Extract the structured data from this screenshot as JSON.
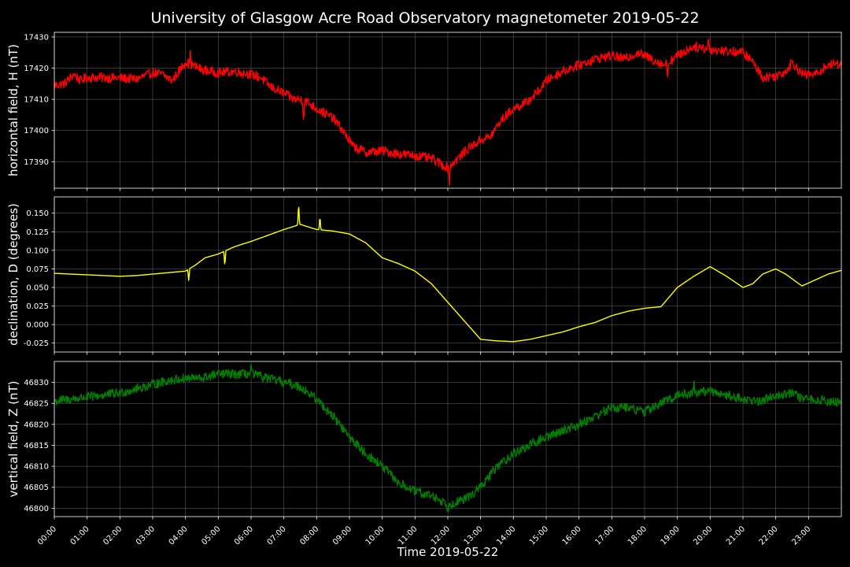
{
  "chart_data": {
    "type": "line",
    "title": "University of Glasgow Acre Road Observatory magnetometer 2019-05-22",
    "xlabel": "Time 2019-05-22",
    "x_ticks": [
      "00:00",
      "01:00",
      "02:00",
      "03:00",
      "04:00",
      "05:00",
      "06:00",
      "07:00",
      "08:00",
      "09:00",
      "10:00",
      "11:00",
      "12:00",
      "13:00",
      "14:00",
      "15:00",
      "16:00",
      "17:00",
      "18:00",
      "19:00",
      "20:00",
      "21:00",
      "22:00",
      "23:00"
    ],
    "xlim": [
      0,
      24
    ],
    "grid": true,
    "panels": [
      {
        "name": "H",
        "ylabel": "horizontal field, H (nT)",
        "color": "#ff0000",
        "ylim": [
          17381.5,
          17431.5
        ],
        "yticks": [
          17390,
          17400,
          17410,
          17420,
          17430
        ],
        "noise": 0.6,
        "points": [
          [
            0,
            17414.5
          ],
          [
            0.3,
            17415
          ],
          [
            0.6,
            17418
          ],
          [
            0.8,
            17416
          ],
          [
            1.0,
            17417
          ],
          [
            1.5,
            17417
          ],
          [
            2.0,
            17416.8
          ],
          [
            2.5,
            17416.5
          ],
          [
            3.0,
            17418.5
          ],
          [
            3.3,
            17418
          ],
          [
            3.6,
            17416
          ],
          [
            3.8,
            17419
          ],
          [
            4.0,
            17422
          ],
          [
            4.2,
            17421
          ],
          [
            4.5,
            17419.5
          ],
          [
            5.0,
            17418.5
          ],
          [
            5.5,
            17419
          ],
          [
            6.0,
            17418
          ],
          [
            6.3,
            17417
          ],
          [
            6.6,
            17414
          ],
          [
            7.0,
            17412
          ],
          [
            7.3,
            17410
          ],
          [
            7.6,
            17410
          ],
          [
            8.0,
            17407
          ],
          [
            8.5,
            17404
          ],
          [
            8.8,
            17400
          ],
          [
            9.1,
            17395
          ],
          [
            9.5,
            17393
          ],
          [
            10.0,
            17393.5
          ],
          [
            10.5,
            17392.5
          ],
          [
            11.0,
            17392
          ],
          [
            11.5,
            17391
          ],
          [
            12.0,
            17388
          ],
          [
            12.3,
            17391
          ],
          [
            12.6,
            17394
          ],
          [
            13.0,
            17397
          ],
          [
            13.3,
            17398
          ],
          [
            13.6,
            17403
          ],
          [
            14.0,
            17407
          ],
          [
            14.4,
            17409
          ],
          [
            14.8,
            17413
          ],
          [
            15.0,
            17416
          ],
          [
            15.5,
            17419
          ],
          [
            16.0,
            17421
          ],
          [
            16.5,
            17423
          ],
          [
            17.0,
            17424
          ],
          [
            17.4,
            17423
          ],
          [
            17.8,
            17425
          ],
          [
            18.2,
            17423
          ],
          [
            18.6,
            17421
          ],
          [
            19.0,
            17424
          ],
          [
            19.5,
            17427
          ],
          [
            20.0,
            17426
          ],
          [
            20.5,
            17425.5
          ],
          [
            21.0,
            17425
          ],
          [
            21.3,
            17422
          ],
          [
            21.6,
            17417
          ],
          [
            22.0,
            17417.5
          ],
          [
            22.3,
            17419
          ],
          [
            22.5,
            17422
          ],
          [
            22.8,
            17418
          ],
          [
            23.2,
            17418
          ],
          [
            23.6,
            17421
          ],
          [
            24.0,
            17421.5
          ]
        ],
        "spikes": [
          [
            4.15,
            17424.5
          ],
          [
            7.6,
            17403
          ],
          [
            12.05,
            17383.5
          ],
          [
            19.95,
            17429.5
          ],
          [
            18.7,
            17417
          ]
        ]
      },
      {
        "name": "D",
        "ylabel": "declination, D (degrees)",
        "color": "#ffff00",
        "ylim": [
          -0.037,
          0.172
        ],
        "yticks": [
          -0.025,
          0.0,
          0.025,
          0.05,
          0.075,
          0.1,
          0.125,
          0.15
        ],
        "noise": 0.002,
        "points": [
          [
            0,
            0.069
          ],
          [
            0.5,
            0.068
          ],
          [
            1.0,
            0.067
          ],
          [
            1.5,
            0.066
          ],
          [
            2.0,
            0.065
          ],
          [
            2.5,
            0.066
          ],
          [
            3.0,
            0.068
          ],
          [
            3.5,
            0.07
          ],
          [
            4.0,
            0.072
          ],
          [
            4.3,
            0.08
          ],
          [
            4.6,
            0.09
          ],
          [
            5.0,
            0.095
          ],
          [
            5.5,
            0.105
          ],
          [
            6.0,
            0.112
          ],
          [
            6.5,
            0.12
          ],
          [
            7.0,
            0.128
          ],
          [
            7.5,
            0.135
          ],
          [
            8.0,
            0.128
          ],
          [
            8.5,
            0.126
          ],
          [
            9.0,
            0.122
          ],
          [
            9.5,
            0.11
          ],
          [
            10.0,
            0.09
          ],
          [
            10.5,
            0.082
          ],
          [
            11.0,
            0.072
          ],
          [
            11.5,
            0.055
          ],
          [
            12.0,
            0.03
          ],
          [
            12.5,
            0.005
          ],
          [
            13.0,
            -0.02
          ],
          [
            13.5,
            -0.022
          ],
          [
            14.0,
            -0.023
          ],
          [
            14.5,
            -0.02
          ],
          [
            15.0,
            -0.015
          ],
          [
            15.5,
            -0.01
          ],
          [
            16.0,
            -0.003
          ],
          [
            16.5,
            0.003
          ],
          [
            17.0,
            0.012
          ],
          [
            17.5,
            0.018
          ],
          [
            18.0,
            0.022
          ],
          [
            18.5,
            0.024
          ],
          [
            19.0,
            0.05
          ],
          [
            19.5,
            0.065
          ],
          [
            20.0,
            0.078
          ],
          [
            20.5,
            0.065
          ],
          [
            21.0,
            0.05
          ],
          [
            21.3,
            0.055
          ],
          [
            21.6,
            0.068
          ],
          [
            22.0,
            0.075
          ],
          [
            22.3,
            0.068
          ],
          [
            22.8,
            0.052
          ],
          [
            23.2,
            0.06
          ],
          [
            23.6,
            0.068
          ],
          [
            24.0,
            0.073
          ]
        ],
        "spikes": [
          [
            7.45,
            0.165
          ],
          [
            8.1,
            0.147
          ],
          [
            4.1,
            0.058
          ],
          [
            5.2,
            0.078
          ]
        ]
      },
      {
        "name": "Z",
        "ylabel": "vertical field, Z (nT)",
        "color": "#008000",
        "ylim": [
          46798,
          46835
        ],
        "yticks": [
          46800,
          46805,
          46810,
          46815,
          46820,
          46825,
          46830
        ],
        "noise": 0.6,
        "points": [
          [
            0,
            46825.5
          ],
          [
            0.5,
            46826
          ],
          [
            1.0,
            46826.5
          ],
          [
            1.5,
            46827
          ],
          [
            2.0,
            46827.5
          ],
          [
            2.5,
            46828.5
          ],
          [
            3.0,
            46829.5
          ],
          [
            3.5,
            46830.5
          ],
          [
            4.0,
            46831
          ],
          [
            4.5,
            46831
          ],
          [
            5.0,
            46832
          ],
          [
            5.5,
            46832
          ],
          [
            6.0,
            46832
          ],
          [
            6.5,
            46831
          ],
          [
            7.0,
            46830
          ],
          [
            7.5,
            46829
          ],
          [
            8.0,
            46826
          ],
          [
            8.5,
            46822
          ],
          [
            9.0,
            46817
          ],
          [
            9.5,
            46813
          ],
          [
            10.0,
            46810
          ],
          [
            10.5,
            46806
          ],
          [
            11.0,
            46804
          ],
          [
            11.5,
            46803
          ],
          [
            12.0,
            46801
          ],
          [
            12.5,
            46802
          ],
          [
            13.0,
            46805
          ],
          [
            13.5,
            46810
          ],
          [
            14.0,
            46813
          ],
          [
            14.5,
            46815
          ],
          [
            15.0,
            46817
          ],
          [
            15.5,
            46818.5
          ],
          [
            16.0,
            46820
          ],
          [
            16.5,
            46822
          ],
          [
            17.0,
            46824
          ],
          [
            17.5,
            46824
          ],
          [
            18.0,
            46823
          ],
          [
            18.5,
            46825
          ],
          [
            19.0,
            46827
          ],
          [
            19.5,
            46827.5
          ],
          [
            20.0,
            46828
          ],
          [
            20.5,
            46827
          ],
          [
            21.0,
            46826
          ],
          [
            21.5,
            46825.5
          ],
          [
            22.0,
            46827
          ],
          [
            22.5,
            46827.5
          ],
          [
            22.8,
            46826
          ],
          [
            23.2,
            46826
          ],
          [
            24.0,
            46825
          ]
        ],
        "spikes": [
          [
            6.0,
            46834
          ],
          [
            12.0,
            46799
          ],
          [
            19.5,
            46830
          ]
        ]
      }
    ]
  }
}
